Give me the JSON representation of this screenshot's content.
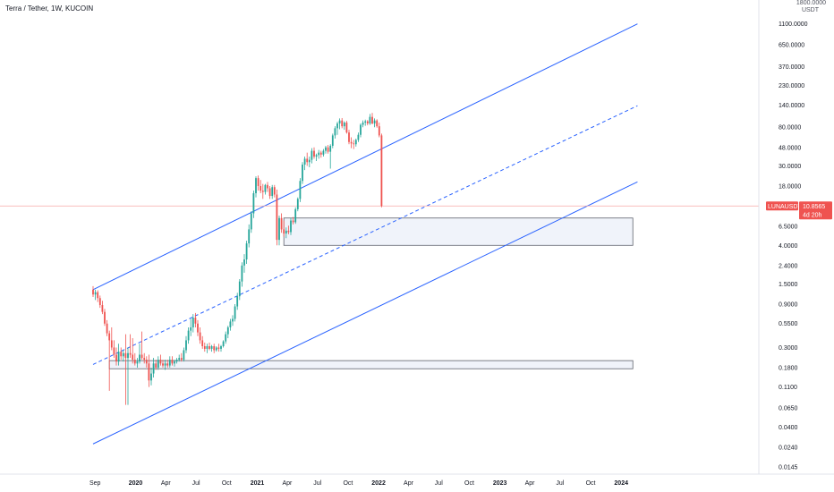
{
  "chart_title": "Terra / Tether, 1W, KUCOIN",
  "colors": {
    "up": "#26a69a",
    "down": "#ef5350",
    "channel": "#2962ff",
    "zone_fill": "#f0f3fa",
    "zone_border": "#5d606b",
    "price_line": "#f7a9a7",
    "price_label_bg": "#ef5350",
    "axis_text": "#131722"
  },
  "price_axis": {
    "unit": "USDT",
    "scale": "log",
    "top_label": "1800.0000",
    "ticks": [
      {
        "label": "1100.0000",
        "value": 1100
      },
      {
        "label": "650.0000",
        "value": 650
      },
      {
        "label": "370.0000",
        "value": 370
      },
      {
        "label": "230.0000",
        "value": 230
      },
      {
        "label": "140.0000",
        "value": 140
      },
      {
        "label": "80.0000",
        "value": 80
      },
      {
        "label": "48.0000",
        "value": 48
      },
      {
        "label": "30.0000",
        "value": 30
      },
      {
        "label": "18.0000",
        "value": 18
      },
      {
        "label": "6.5000",
        "value": 6.5
      },
      {
        "label": "4.0000",
        "value": 4
      },
      {
        "label": "2.4000",
        "value": 2.4
      },
      {
        "label": "1.5000",
        "value": 1.5
      },
      {
        "label": "0.9000",
        "value": 0.9
      },
      {
        "label": "0.5500",
        "value": 0.55
      },
      {
        "label": "0.3000",
        "value": 0.3
      },
      {
        "label": "0.1800",
        "value": 0.18
      },
      {
        "label": "0.1100",
        "value": 0.11
      },
      {
        "label": "0.0650",
        "value": 0.065
      },
      {
        "label": "0.0400",
        "value": 0.04
      },
      {
        "label": "0.0240",
        "value": 0.024
      },
      {
        "label": "0.0145",
        "value": 0.0145
      }
    ]
  },
  "time_axis": {
    "labels": [
      {
        "label": "Sep",
        "bold": false
      },
      {
        "label": "2020",
        "bold": true
      },
      {
        "label": "Apr",
        "bold": false
      },
      {
        "label": "Jul",
        "bold": false
      },
      {
        "label": "Oct",
        "bold": false
      },
      {
        "label": "2021",
        "bold": true
      },
      {
        "label": "Apr",
        "bold": false
      },
      {
        "label": "Jul",
        "bold": false
      },
      {
        "label": "Oct",
        "bold": false
      },
      {
        "label": "2022",
        "bold": true
      },
      {
        "label": "Apr",
        "bold": false
      },
      {
        "label": "Jul",
        "bold": false
      },
      {
        "label": "Oct",
        "bold": false
      },
      {
        "label": "2023",
        "bold": true
      },
      {
        "label": "Apr",
        "bold": false
      },
      {
        "label": "Jul",
        "bold": false
      },
      {
        "label": "Oct",
        "bold": false
      },
      {
        "label": "2024",
        "bold": true
      }
    ]
  },
  "last_price": {
    "symbol": "LUNAUSDT",
    "value": 10.8565,
    "value_label": "10.8565",
    "countdown": "4d 20h"
  },
  "chart_data": {
    "type": "candlestick",
    "title": "Terra / Tether, 1W, KUCOIN",
    "y_scale": "log",
    "ylim": [
      0.0145,
      1800
    ],
    "x_start": "2019-08-26",
    "interval": "1W",
    "candles": [
      {
        "o": 1.3,
        "h": 1.42,
        "l": 1.08,
        "c": 1.15
      },
      {
        "o": 1.15,
        "h": 1.3,
        "l": 1.0,
        "c": 1.22
      },
      {
        "o": 1.22,
        "h": 1.28,
        "l": 0.95,
        "c": 1.05
      },
      {
        "o": 1.05,
        "h": 1.12,
        "l": 0.82,
        "c": 0.88
      },
      {
        "o": 0.88,
        "h": 0.98,
        "l": 0.7,
        "c": 0.74
      },
      {
        "o": 0.74,
        "h": 0.8,
        "l": 0.52,
        "c": 0.55
      },
      {
        "o": 0.55,
        "h": 0.6,
        "l": 0.4,
        "c": 0.43
      },
      {
        "o": 0.43,
        "h": 0.46,
        "l": 0.1,
        "c": 0.36
      },
      {
        "o": 0.36,
        "h": 0.5,
        "l": 0.28,
        "c": 0.3
      },
      {
        "o": 0.3,
        "h": 0.36,
        "l": 0.23,
        "c": 0.25
      },
      {
        "o": 0.25,
        "h": 0.3,
        "l": 0.19,
        "c": 0.21
      },
      {
        "o": 0.21,
        "h": 0.33,
        "l": 0.19,
        "c": 0.27
      },
      {
        "o": 0.27,
        "h": 0.3,
        "l": 0.22,
        "c": 0.24
      },
      {
        "o": 0.24,
        "h": 0.28,
        "l": 0.21,
        "c": 0.26
      },
      {
        "o": 0.26,
        "h": 0.42,
        "l": 0.07,
        "c": 0.23
      },
      {
        "o": 0.23,
        "h": 0.3,
        "l": 0.07,
        "c": 0.26
      },
      {
        "o": 0.26,
        "h": 0.42,
        "l": 0.23,
        "c": 0.25
      },
      {
        "o": 0.25,
        "h": 0.38,
        "l": 0.2,
        "c": 0.22
      },
      {
        "o": 0.22,
        "h": 0.26,
        "l": 0.19,
        "c": 0.2
      },
      {
        "o": 0.2,
        "h": 0.23,
        "l": 0.18,
        "c": 0.21
      },
      {
        "o": 0.21,
        "h": 0.33,
        "l": 0.2,
        "c": 0.25
      },
      {
        "o": 0.25,
        "h": 0.45,
        "l": 0.22,
        "c": 0.23
      },
      {
        "o": 0.23,
        "h": 0.26,
        "l": 0.2,
        "c": 0.22
      },
      {
        "o": 0.22,
        "h": 0.24,
        "l": 0.18,
        "c": 0.2
      },
      {
        "o": 0.2,
        "h": 0.25,
        "l": 0.11,
        "c": 0.13
      },
      {
        "o": 0.13,
        "h": 0.18,
        "l": 0.115,
        "c": 0.155
      },
      {
        "o": 0.155,
        "h": 0.23,
        "l": 0.14,
        "c": 0.2
      },
      {
        "o": 0.2,
        "h": 0.22,
        "l": 0.17,
        "c": 0.18
      },
      {
        "o": 0.18,
        "h": 0.24,
        "l": 0.17,
        "c": 0.22
      },
      {
        "o": 0.22,
        "h": 0.25,
        "l": 0.19,
        "c": 0.2
      },
      {
        "o": 0.2,
        "h": 0.22,
        "l": 0.18,
        "c": 0.19
      },
      {
        "o": 0.19,
        "h": 0.22,
        "l": 0.17,
        "c": 0.2
      },
      {
        "o": 0.2,
        "h": 0.22,
        "l": 0.18,
        "c": 0.19
      },
      {
        "o": 0.19,
        "h": 0.24,
        "l": 0.18,
        "c": 0.22
      },
      {
        "o": 0.22,
        "h": 0.24,
        "l": 0.19,
        "c": 0.2
      },
      {
        "o": 0.2,
        "h": 0.22,
        "l": 0.185,
        "c": 0.21
      },
      {
        "o": 0.21,
        "h": 0.23,
        "l": 0.2,
        "c": 0.22
      },
      {
        "o": 0.22,
        "h": 0.25,
        "l": 0.21,
        "c": 0.23
      },
      {
        "o": 0.23,
        "h": 0.26,
        "l": 0.21,
        "c": 0.22
      },
      {
        "o": 0.22,
        "h": 0.3,
        "l": 0.21,
        "c": 0.28
      },
      {
        "o": 0.28,
        "h": 0.4,
        "l": 0.26,
        "c": 0.36
      },
      {
        "o": 0.36,
        "h": 0.5,
        "l": 0.33,
        "c": 0.46
      },
      {
        "o": 0.46,
        "h": 0.62,
        "l": 0.4,
        "c": 0.5
      },
      {
        "o": 0.5,
        "h": 0.7,
        "l": 0.44,
        "c": 0.64
      },
      {
        "o": 0.64,
        "h": 0.72,
        "l": 0.5,
        "c": 0.55
      },
      {
        "o": 0.55,
        "h": 0.6,
        "l": 0.4,
        "c": 0.44
      },
      {
        "o": 0.44,
        "h": 0.5,
        "l": 0.33,
        "c": 0.36
      },
      {
        "o": 0.36,
        "h": 0.4,
        "l": 0.29,
        "c": 0.31
      },
      {
        "o": 0.31,
        "h": 0.34,
        "l": 0.27,
        "c": 0.29
      },
      {
        "o": 0.29,
        "h": 0.33,
        "l": 0.26,
        "c": 0.31
      },
      {
        "o": 0.31,
        "h": 0.34,
        "l": 0.28,
        "c": 0.29
      },
      {
        "o": 0.29,
        "h": 0.32,
        "l": 0.27,
        "c": 0.31
      },
      {
        "o": 0.31,
        "h": 0.33,
        "l": 0.26,
        "c": 0.28
      },
      {
        "o": 0.28,
        "h": 0.31,
        "l": 0.27,
        "c": 0.3
      },
      {
        "o": 0.3,
        "h": 0.33,
        "l": 0.27,
        "c": 0.29
      },
      {
        "o": 0.29,
        "h": 0.32,
        "l": 0.27,
        "c": 0.31
      },
      {
        "o": 0.31,
        "h": 0.36,
        "l": 0.3,
        "c": 0.35
      },
      {
        "o": 0.35,
        "h": 0.45,
        "l": 0.33,
        "c": 0.42
      },
      {
        "o": 0.42,
        "h": 0.52,
        "l": 0.38,
        "c": 0.5
      },
      {
        "o": 0.5,
        "h": 0.62,
        "l": 0.46,
        "c": 0.58
      },
      {
        "o": 0.58,
        "h": 0.68,
        "l": 0.52,
        "c": 0.62
      },
      {
        "o": 0.62,
        "h": 0.9,
        "l": 0.58,
        "c": 0.85
      },
      {
        "o": 0.85,
        "h": 1.2,
        "l": 0.78,
        "c": 1.1
      },
      {
        "o": 1.1,
        "h": 1.7,
        "l": 1.0,
        "c": 1.6
      },
      {
        "o": 1.6,
        "h": 2.6,
        "l": 1.4,
        "c": 2.4
      },
      {
        "o": 2.4,
        "h": 3.2,
        "l": 2.0,
        "c": 2.8
      },
      {
        "o": 2.8,
        "h": 4.5,
        "l": 2.5,
        "c": 4.2
      },
      {
        "o": 4.2,
        "h": 6.8,
        "l": 3.8,
        "c": 6.0
      },
      {
        "o": 6.0,
        "h": 9.5,
        "l": 5.5,
        "c": 9.0
      },
      {
        "o": 9.0,
        "h": 16.0,
        "l": 8.0,
        "c": 15.0
      },
      {
        "o": 15.0,
        "h": 23.0,
        "l": 13.5,
        "c": 22.0
      },
      {
        "o": 22.0,
        "h": 23.5,
        "l": 16.0,
        "c": 18.0
      },
      {
        "o": 18.0,
        "h": 21.0,
        "l": 15.0,
        "c": 16.0
      },
      {
        "o": 16.0,
        "h": 19.0,
        "l": 13.0,
        "c": 15.5
      },
      {
        "o": 15.5,
        "h": 19.0,
        "l": 14.5,
        "c": 18.5
      },
      {
        "o": 18.5,
        "h": 20.0,
        "l": 15.5,
        "c": 17.0
      },
      {
        "o": 17.0,
        "h": 18.0,
        "l": 13.0,
        "c": 14.0
      },
      {
        "o": 14.0,
        "h": 18.5,
        "l": 13.0,
        "c": 17.5
      },
      {
        "o": 17.5,
        "h": 18.5,
        "l": 13.5,
        "c": 14.5
      },
      {
        "o": 14.5,
        "h": 16.5,
        "l": 4.0,
        "c": 4.6
      },
      {
        "o": 4.6,
        "h": 8.5,
        "l": 4.0,
        "c": 8.0
      },
      {
        "o": 8.0,
        "h": 9.0,
        "l": 5.5,
        "c": 6.0
      },
      {
        "o": 6.0,
        "h": 7.5,
        "l": 5.0,
        "c": 5.4
      },
      {
        "o": 5.4,
        "h": 6.3,
        "l": 4.8,
        "c": 5.8
      },
      {
        "o": 5.8,
        "h": 6.6,
        "l": 5.3,
        "c": 5.6
      },
      {
        "o": 5.6,
        "h": 8.0,
        "l": 5.2,
        "c": 7.5
      },
      {
        "o": 7.5,
        "h": 8.2,
        "l": 6.8,
        "c": 7.2
      },
      {
        "o": 7.2,
        "h": 10.5,
        "l": 6.9,
        "c": 10.0
      },
      {
        "o": 10.0,
        "h": 13.5,
        "l": 9.5,
        "c": 13.0
      },
      {
        "o": 13.0,
        "h": 22.0,
        "l": 12.0,
        "c": 20.5
      },
      {
        "o": 20.5,
        "h": 33.0,
        "l": 19.0,
        "c": 31.0
      },
      {
        "o": 31.0,
        "h": 38.0,
        "l": 27.0,
        "c": 36.0
      },
      {
        "o": 36.0,
        "h": 42.0,
        "l": 30.0,
        "c": 33.0
      },
      {
        "o": 33.0,
        "h": 38.0,
        "l": 29.0,
        "c": 35.0
      },
      {
        "o": 35.0,
        "h": 47.0,
        "l": 32.0,
        "c": 44.0
      },
      {
        "o": 44.0,
        "h": 48.0,
        "l": 36.0,
        "c": 38.0
      },
      {
        "o": 38.0,
        "h": 41.0,
        "l": 34.0,
        "c": 39.5
      },
      {
        "o": 39.5,
        "h": 45.0,
        "l": 36.0,
        "c": 42.0
      },
      {
        "o": 42.0,
        "h": 44.0,
        "l": 37.0,
        "c": 40.0
      },
      {
        "o": 40.0,
        "h": 46.0,
        "l": 38.0,
        "c": 44.0
      },
      {
        "o": 44.0,
        "h": 50.0,
        "l": 41.0,
        "c": 48.0
      },
      {
        "o": 48.0,
        "h": 51.0,
        "l": 41.0,
        "c": 43.0
      },
      {
        "o": 43.0,
        "h": 52.0,
        "l": 28.0,
        "c": 50.0
      },
      {
        "o": 50.0,
        "h": 68.0,
        "l": 47.0,
        "c": 65.0
      },
      {
        "o": 65.0,
        "h": 82.0,
        "l": 60.0,
        "c": 78.0
      },
      {
        "o": 78.0,
        "h": 92.0,
        "l": 66.0,
        "c": 88.0
      },
      {
        "o": 88.0,
        "h": 100.0,
        "l": 76.0,
        "c": 95.0
      },
      {
        "o": 95.0,
        "h": 101.0,
        "l": 78.0,
        "c": 82.0
      },
      {
        "o": 82.0,
        "h": 93.0,
        "l": 75.0,
        "c": 90.0
      },
      {
        "o": 90.0,
        "h": 94.0,
        "l": 68.0,
        "c": 70.0
      },
      {
        "o": 70.0,
        "h": 75.0,
        "l": 52.0,
        "c": 55.0
      },
      {
        "o": 55.0,
        "h": 62.0,
        "l": 47.0,
        "c": 53.0
      },
      {
        "o": 53.0,
        "h": 58.0,
        "l": 46.0,
        "c": 52.0
      },
      {
        "o": 52.0,
        "h": 60.0,
        "l": 49.0,
        "c": 58.0
      },
      {
        "o": 58.0,
        "h": 70.0,
        "l": 55.0,
        "c": 66.0
      },
      {
        "o": 66.0,
        "h": 88.0,
        "l": 62.0,
        "c": 85.0
      },
      {
        "o": 85.0,
        "h": 95.0,
        "l": 80.0,
        "c": 90.0
      },
      {
        "o": 90.0,
        "h": 97.0,
        "l": 83.0,
        "c": 93.0
      },
      {
        "o": 93.0,
        "h": 96.0,
        "l": 84.0,
        "c": 88.0
      },
      {
        "o": 88.0,
        "h": 112.0,
        "l": 85.0,
        "c": 104.0
      },
      {
        "o": 104.0,
        "h": 115.0,
        "l": 86.0,
        "c": 88.0
      },
      {
        "o": 88.0,
        "h": 100.0,
        "l": 80.0,
        "c": 95.0
      },
      {
        "o": 95.0,
        "h": 98.0,
        "l": 79.0,
        "c": 82.0
      },
      {
        "o": 82.0,
        "h": 90.0,
        "l": 62.0,
        "c": 65.0
      },
      {
        "o": 65.0,
        "h": 68.0,
        "l": 10.5,
        "c": 10.8565
      }
    ],
    "channel": {
      "upper": {
        "start": {
          "index": 0,
          "price": 1.3
        },
        "end": {
          "index": 234,
          "price": 1100
        }
      },
      "mid": {
        "start": {
          "index": 0,
          "price": 0.195
        },
        "end": {
          "index": 234,
          "price": 138
        }
      },
      "lower": {
        "start": {
          "index": 0,
          "price": 0.026
        },
        "end": {
          "index": 234,
          "price": 20
        }
      }
    },
    "zones": [
      {
        "x_start_index": 82,
        "x_end_index": 232,
        "top": 8.0,
        "bottom": 4.0
      },
      {
        "x_start_index": 7,
        "x_end_index": 232,
        "top": 0.215,
        "bottom": 0.175
      }
    ],
    "x_labels": [
      {
        "label": "Sep",
        "date": "2019-09-01"
      },
      {
        "label": "2020",
        "date": "2020-01-01"
      },
      {
        "label": "Apr",
        "date": "2020-04-01"
      },
      {
        "label": "Jul",
        "date": "2020-07-01"
      },
      {
        "label": "Oct",
        "date": "2020-10-01"
      },
      {
        "label": "2021",
        "date": "2021-01-01"
      },
      {
        "label": "Apr",
        "date": "2021-04-01"
      },
      {
        "label": "Jul",
        "date": "2021-07-01"
      },
      {
        "label": "Oct",
        "date": "2021-10-01"
      },
      {
        "label": "2022",
        "date": "2022-01-01"
      },
      {
        "label": "Apr",
        "date": "2022-04-01"
      },
      {
        "label": "Jul",
        "date": "2022-07-01"
      },
      {
        "label": "Oct",
        "date": "2022-10-01"
      },
      {
        "label": "2023",
        "date": "2023-01-01"
      },
      {
        "label": "Apr",
        "date": "2023-04-01"
      },
      {
        "label": "Jul",
        "date": "2023-07-01"
      },
      {
        "label": "Oct",
        "date": "2023-10-01"
      },
      {
        "label": "2024",
        "date": "2024-01-01"
      }
    ]
  }
}
